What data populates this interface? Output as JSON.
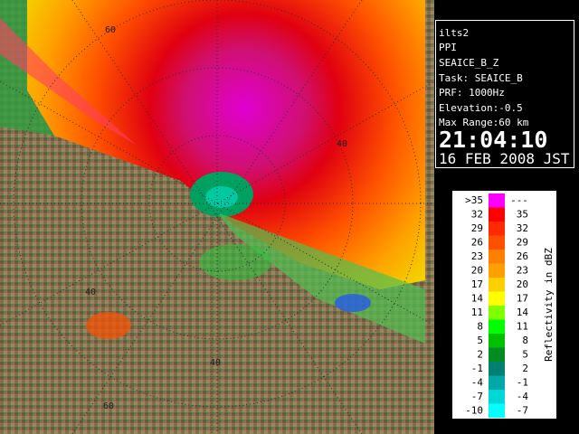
{
  "info": {
    "lines": [
      "ilts2",
      "PPI",
      "SEAICE_B_Z",
      "Task: SEAICE_B",
      "PRF: 1000Hz",
      "Elevation:-0.5",
      "Max Range:60 km"
    ],
    "time": "21:04:10",
    "date": "16 FEB 2008 JST"
  },
  "ring_labels": [
    "60",
    "40",
    "40",
    "40",
    "60"
  ],
  "legend": {
    "title": "Reflectivity in dBZ",
    "rows": [
      {
        "low": ">35",
        "high": "---",
        "color": "#ff00ff"
      },
      {
        "low": "32",
        "high": "35",
        "color": "#ff0000"
      },
      {
        "low": "29",
        "high": "32",
        "color": "#ff2a00"
      },
      {
        "low": "26",
        "high": "29",
        "color": "#ff5000"
      },
      {
        "low": "23",
        "high": "26",
        "color": "#ff8000"
      },
      {
        "low": "20",
        "high": "23",
        "color": "#ffa000"
      },
      {
        "low": "17",
        "high": "20",
        "color": "#ffd000"
      },
      {
        "low": "14",
        "high": "17",
        "color": "#ffff00"
      },
      {
        "low": "11",
        "high": "14",
        "color": "#80ff00"
      },
      {
        "low": "8",
        "high": "11",
        "color": "#00ff00"
      },
      {
        "low": "5",
        "high": "8",
        "color": "#00c000"
      },
      {
        "low": "2",
        "high": "5",
        "color": "#008c20"
      },
      {
        "low": "-1",
        "high": "2",
        "color": "#008070"
      },
      {
        "low": "-4",
        "high": "-1",
        "color": "#00a8a8"
      },
      {
        "low": "-7",
        "high": "-4",
        "color": "#00d8d8"
      },
      {
        "low": "-10",
        "high": "-7",
        "color": "#00ffff"
      }
    ]
  }
}
